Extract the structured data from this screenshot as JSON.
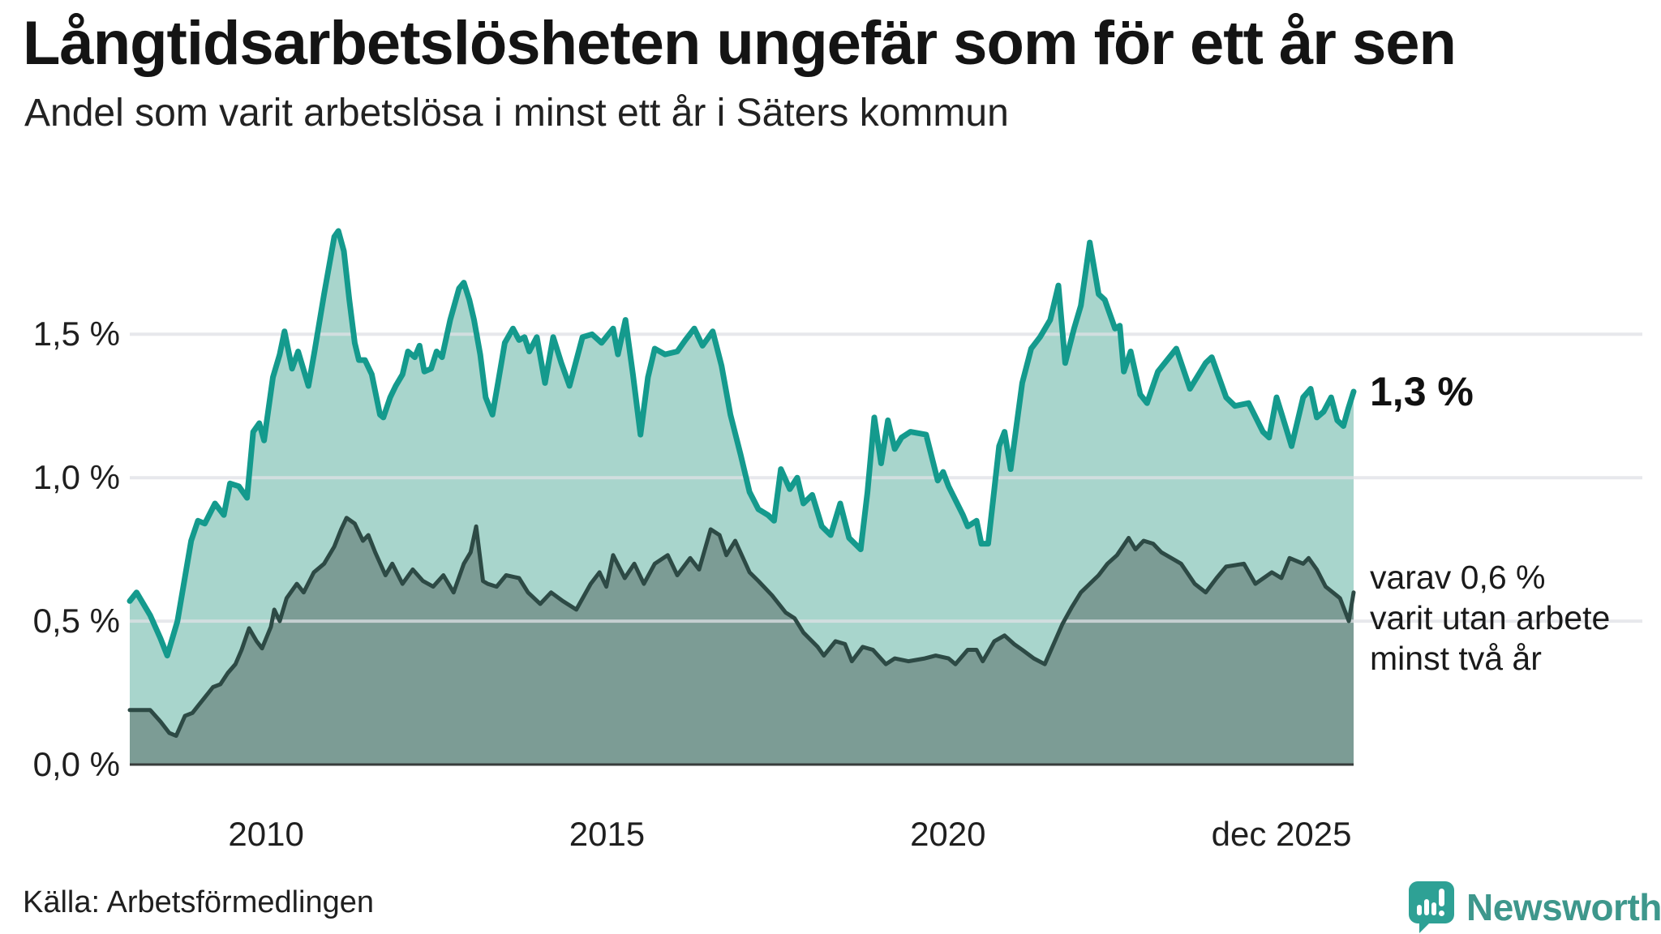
{
  "header": {
    "title": "Långtidsarbetslösheten ungefär som för ett år sen",
    "subtitle": "Andel som varit arbetslösa i minst ett år i Säters kommun"
  },
  "footer": {
    "source": "Källa: Arbetsförmedlingen",
    "logo_text": "Newsworthy"
  },
  "colors": {
    "series1_line": "#149A8D",
    "series1_fill": "#A8D5CC",
    "series2_line": "#2D4A45",
    "series2_fill": "#7C9C95",
    "gridline": "#E1E2E8",
    "baseline": "#373C3B",
    "logo_teal": "#2EA195",
    "text": "#141414"
  },
  "chart_data": {
    "type": "area",
    "title": "Långtidsarbetslösheten ungefär som för ett år sen",
    "subtitle": "Andel som varit arbetslösa i minst ett år i Säters kommun",
    "unit": "%",
    "xlim": [
      2008.0,
      2025.95
    ],
    "ylim": [
      0,
      2.1
    ],
    "grid": "horizontal",
    "legend": "none",
    "yticks": [
      {
        "v": 1.5,
        "label": "1,5 %"
      },
      {
        "v": 1.0,
        "label": "1,0 %"
      },
      {
        "v": 0.5,
        "label": "0,5 %"
      },
      {
        "v": 0.0,
        "label": "0,0 %"
      }
    ],
    "grid_values": [
      0.5,
      1.0,
      1.5
    ],
    "xticks": [
      {
        "t": 2010,
        "label": "2010",
        "align": "center"
      },
      {
        "t": 2015,
        "label": "2015",
        "align": "center"
      },
      {
        "t": 2020,
        "label": "2020",
        "align": "center"
      },
      {
        "t": 2025.92,
        "label": "dec 2025",
        "align": "right"
      }
    ],
    "series": [
      {
        "name": "Andel som varit arbetslösa minst ett år",
        "end_label": "1,3 %",
        "end_value": 1.3,
        "line_color": "#149A8D",
        "fill_color": "#A8D5CC",
        "points": [
          [
            2008.0,
            0.57
          ],
          [
            2008.1,
            0.6
          ],
          [
            2008.3,
            0.52
          ],
          [
            2008.45,
            0.44
          ],
          [
            2008.55,
            0.38
          ],
          [
            2008.7,
            0.5
          ],
          [
            2008.9,
            0.78
          ],
          [
            2009.0,
            0.85
          ],
          [
            2009.1,
            0.84
          ],
          [
            2009.25,
            0.91
          ],
          [
            2009.38,
            0.87
          ],
          [
            2009.47,
            0.98
          ],
          [
            2009.6,
            0.97
          ],
          [
            2009.72,
            0.93
          ],
          [
            2009.81,
            1.16
          ],
          [
            2009.9,
            1.19
          ],
          [
            2009.97,
            1.13
          ],
          [
            2010.1,
            1.35
          ],
          [
            2010.2,
            1.43
          ],
          [
            2010.27,
            1.51
          ],
          [
            2010.38,
            1.38
          ],
          [
            2010.47,
            1.44
          ],
          [
            2010.62,
            1.32
          ],
          [
            2010.71,
            1.44
          ],
          [
            2010.85,
            1.64
          ],
          [
            2011.0,
            1.84
          ],
          [
            2011.06,
            1.86
          ],
          [
            2011.14,
            1.79
          ],
          [
            2011.22,
            1.62
          ],
          [
            2011.3,
            1.47
          ],
          [
            2011.36,
            1.41
          ],
          [
            2011.45,
            1.41
          ],
          [
            2011.55,
            1.36
          ],
          [
            2011.67,
            1.22
          ],
          [
            2011.72,
            1.21
          ],
          [
            2011.82,
            1.28
          ],
          [
            2011.9,
            1.32
          ],
          [
            2012.0,
            1.36
          ],
          [
            2012.08,
            1.44
          ],
          [
            2012.18,
            1.42
          ],
          [
            2012.25,
            1.46
          ],
          [
            2012.32,
            1.37
          ],
          [
            2012.42,
            1.38
          ],
          [
            2012.5,
            1.44
          ],
          [
            2012.58,
            1.42
          ],
          [
            2012.7,
            1.55
          ],
          [
            2012.83,
            1.66
          ],
          [
            2012.9,
            1.68
          ],
          [
            2012.98,
            1.62
          ],
          [
            2013.05,
            1.55
          ],
          [
            2013.14,
            1.43
          ],
          [
            2013.22,
            1.28
          ],
          [
            2013.32,
            1.22
          ],
          [
            2013.4,
            1.33
          ],
          [
            2013.5,
            1.47
          ],
          [
            2013.62,
            1.52
          ],
          [
            2013.71,
            1.48
          ],
          [
            2013.79,
            1.49
          ],
          [
            2013.86,
            1.44
          ],
          [
            2013.97,
            1.49
          ],
          [
            2014.09,
            1.33
          ],
          [
            2014.21,
            1.49
          ],
          [
            2014.33,
            1.4
          ],
          [
            2014.45,
            1.32
          ],
          [
            2014.64,
            1.49
          ],
          [
            2014.78,
            1.5
          ],
          [
            2014.92,
            1.47
          ],
          [
            2015.09,
            1.52
          ],
          [
            2015.16,
            1.43
          ],
          [
            2015.27,
            1.55
          ],
          [
            2015.38,
            1.36
          ],
          [
            2015.49,
            1.15
          ],
          [
            2015.6,
            1.35
          ],
          [
            2015.7,
            1.45
          ],
          [
            2015.85,
            1.43
          ],
          [
            2016.03,
            1.44
          ],
          [
            2016.15,
            1.48
          ],
          [
            2016.28,
            1.52
          ],
          [
            2016.4,
            1.46
          ],
          [
            2016.55,
            1.51
          ],
          [
            2016.68,
            1.39
          ],
          [
            2016.81,
            1.22
          ],
          [
            2016.96,
            1.08
          ],
          [
            2017.09,
            0.95
          ],
          [
            2017.22,
            0.89
          ],
          [
            2017.36,
            0.87
          ],
          [
            2017.45,
            0.85
          ],
          [
            2017.55,
            1.03
          ],
          [
            2017.68,
            0.96
          ],
          [
            2017.79,
            1.0
          ],
          [
            2017.88,
            0.91
          ],
          [
            2018.01,
            0.94
          ],
          [
            2018.15,
            0.83
          ],
          [
            2018.28,
            0.8
          ],
          [
            2018.42,
            0.91
          ],
          [
            2018.55,
            0.79
          ],
          [
            2018.72,
            0.75
          ],
          [
            2018.82,
            0.95
          ],
          [
            2018.92,
            1.21
          ],
          [
            2019.02,
            1.05
          ],
          [
            2019.12,
            1.2
          ],
          [
            2019.22,
            1.1
          ],
          [
            2019.32,
            1.14
          ],
          [
            2019.45,
            1.16
          ],
          [
            2019.68,
            1.15
          ],
          [
            2019.85,
            0.99
          ],
          [
            2019.93,
            1.02
          ],
          [
            2020.01,
            0.97
          ],
          [
            2020.22,
            0.87
          ],
          [
            2020.29,
            0.83
          ],
          [
            2020.42,
            0.85
          ],
          [
            2020.49,
            0.77
          ],
          [
            2020.59,
            0.77
          ],
          [
            2020.68,
            0.96
          ],
          [
            2020.75,
            1.11
          ],
          [
            2020.83,
            1.16
          ],
          [
            2020.92,
            1.03
          ],
          [
            2021.09,
            1.33
          ],
          [
            2021.22,
            1.45
          ],
          [
            2021.35,
            1.49
          ],
          [
            2021.5,
            1.55
          ],
          [
            2021.62,
            1.67
          ],
          [
            2021.72,
            1.4
          ],
          [
            2021.85,
            1.52
          ],
          [
            2021.95,
            1.6
          ],
          [
            2022.08,
            1.82
          ],
          [
            2022.21,
            1.64
          ],
          [
            2022.3,
            1.62
          ],
          [
            2022.45,
            1.52
          ],
          [
            2022.52,
            1.53
          ],
          [
            2022.58,
            1.37
          ],
          [
            2022.68,
            1.44
          ],
          [
            2022.82,
            1.29
          ],
          [
            2022.92,
            1.26
          ],
          [
            2023.08,
            1.37
          ],
          [
            2023.35,
            1.45
          ],
          [
            2023.55,
            1.31
          ],
          [
            2023.78,
            1.4
          ],
          [
            2023.87,
            1.42
          ],
          [
            2024.08,
            1.28
          ],
          [
            2024.21,
            1.25
          ],
          [
            2024.41,
            1.26
          ],
          [
            2024.62,
            1.16
          ],
          [
            2024.71,
            1.14
          ],
          [
            2024.82,
            1.28
          ],
          [
            2024.95,
            1.18
          ],
          [
            2025.04,
            1.11
          ],
          [
            2025.21,
            1.28
          ],
          [
            2025.32,
            1.31
          ],
          [
            2025.41,
            1.21
          ],
          [
            2025.51,
            1.23
          ],
          [
            2025.62,
            1.28
          ],
          [
            2025.71,
            1.2
          ],
          [
            2025.8,
            1.18
          ],
          [
            2025.87,
            1.24
          ],
          [
            2025.95,
            1.3
          ]
        ]
      },
      {
        "name": "varav utan arbete minst två år",
        "end_annotation": "varav 0,6 %\nvarit utan arbete\nminst två år",
        "end_value": 0.6,
        "line_color": "#2D4A45",
        "fill_color": "#7C9C95",
        "points": [
          [
            2008.0,
            0.19
          ],
          [
            2008.3,
            0.19
          ],
          [
            2008.45,
            0.15
          ],
          [
            2008.58,
            0.11
          ],
          [
            2008.68,
            0.1
          ],
          [
            2008.81,
            0.17
          ],
          [
            2008.92,
            0.18
          ],
          [
            2009.02,
            0.21
          ],
          [
            2009.12,
            0.24
          ],
          [
            2009.22,
            0.27
          ],
          [
            2009.33,
            0.28
          ],
          [
            2009.44,
            0.32
          ],
          [
            2009.55,
            0.35
          ],
          [
            2009.64,
            0.4
          ],
          [
            2009.75,
            0.475
          ],
          [
            2009.86,
            0.43
          ],
          [
            2009.94,
            0.405
          ],
          [
            2010.07,
            0.48
          ],
          [
            2010.12,
            0.54
          ],
          [
            2010.2,
            0.5
          ],
          [
            2010.3,
            0.58
          ],
          [
            2010.45,
            0.63
          ],
          [
            2010.55,
            0.6
          ],
          [
            2010.7,
            0.67
          ],
          [
            2010.85,
            0.7
          ],
          [
            2011.0,
            0.76
          ],
          [
            2011.1,
            0.82
          ],
          [
            2011.18,
            0.86
          ],
          [
            2011.3,
            0.84
          ],
          [
            2011.42,
            0.78
          ],
          [
            2011.5,
            0.8
          ],
          [
            2011.6,
            0.74
          ],
          [
            2011.75,
            0.66
          ],
          [
            2011.85,
            0.7
          ],
          [
            2012.0,
            0.63
          ],
          [
            2012.15,
            0.68
          ],
          [
            2012.3,
            0.64
          ],
          [
            2012.45,
            0.62
          ],
          [
            2012.6,
            0.66
          ],
          [
            2012.75,
            0.6
          ],
          [
            2012.9,
            0.7
          ],
          [
            2013.0,
            0.74
          ],
          [
            2013.08,
            0.83
          ],
          [
            2013.18,
            0.64
          ],
          [
            2013.25,
            0.63
          ],
          [
            2013.38,
            0.62
          ],
          [
            2013.52,
            0.66
          ],
          [
            2013.71,
            0.65
          ],
          [
            2013.84,
            0.6
          ],
          [
            2014.02,
            0.56
          ],
          [
            2014.18,
            0.6
          ],
          [
            2014.35,
            0.57
          ],
          [
            2014.55,
            0.54
          ],
          [
            2014.76,
            0.63
          ],
          [
            2014.89,
            0.67
          ],
          [
            2014.99,
            0.62
          ],
          [
            2015.09,
            0.73
          ],
          [
            2015.26,
            0.65
          ],
          [
            2015.4,
            0.7
          ],
          [
            2015.54,
            0.63
          ],
          [
            2015.7,
            0.7
          ],
          [
            2015.89,
            0.73
          ],
          [
            2016.03,
            0.66
          ],
          [
            2016.22,
            0.72
          ],
          [
            2016.35,
            0.68
          ],
          [
            2016.52,
            0.82
          ],
          [
            2016.65,
            0.8
          ],
          [
            2016.75,
            0.73
          ],
          [
            2016.88,
            0.78
          ],
          [
            2017.09,
            0.67
          ],
          [
            2017.22,
            0.64
          ],
          [
            2017.42,
            0.59
          ],
          [
            2017.62,
            0.53
          ],
          [
            2017.75,
            0.51
          ],
          [
            2017.88,
            0.46
          ],
          [
            2018.09,
            0.41
          ],
          [
            2018.18,
            0.38
          ],
          [
            2018.35,
            0.43
          ],
          [
            2018.49,
            0.42
          ],
          [
            2018.59,
            0.36
          ],
          [
            2018.75,
            0.41
          ],
          [
            2018.9,
            0.4
          ],
          [
            2019.09,
            0.35
          ],
          [
            2019.22,
            0.37
          ],
          [
            2019.42,
            0.36
          ],
          [
            2019.66,
            0.37
          ],
          [
            2019.82,
            0.38
          ],
          [
            2020.01,
            0.37
          ],
          [
            2020.11,
            0.35
          ],
          [
            2020.29,
            0.4
          ],
          [
            2020.42,
            0.4
          ],
          [
            2020.51,
            0.36
          ],
          [
            2020.68,
            0.43
          ],
          [
            2020.83,
            0.45
          ],
          [
            2020.97,
            0.42
          ],
          [
            2021.09,
            0.4
          ],
          [
            2021.26,
            0.37
          ],
          [
            2021.42,
            0.35
          ],
          [
            2021.68,
            0.49
          ],
          [
            2021.82,
            0.55
          ],
          [
            2021.95,
            0.6
          ],
          [
            2022.08,
            0.63
          ],
          [
            2022.21,
            0.66
          ],
          [
            2022.34,
            0.7
          ],
          [
            2022.48,
            0.73
          ],
          [
            2022.65,
            0.79
          ],
          [
            2022.75,
            0.75
          ],
          [
            2022.87,
            0.78
          ],
          [
            2023.01,
            0.77
          ],
          [
            2023.13,
            0.74
          ],
          [
            2023.42,
            0.7
          ],
          [
            2023.62,
            0.63
          ],
          [
            2023.78,
            0.6
          ],
          [
            2023.94,
            0.65
          ],
          [
            2024.08,
            0.69
          ],
          [
            2024.34,
            0.7
          ],
          [
            2024.51,
            0.63
          ],
          [
            2024.75,
            0.67
          ],
          [
            2024.89,
            0.65
          ],
          [
            2025.01,
            0.72
          ],
          [
            2025.21,
            0.7
          ],
          [
            2025.29,
            0.72
          ],
          [
            2025.41,
            0.68
          ],
          [
            2025.54,
            0.62
          ],
          [
            2025.75,
            0.58
          ],
          [
            2025.88,
            0.5
          ],
          [
            2025.95,
            0.6
          ]
        ]
      }
    ]
  }
}
